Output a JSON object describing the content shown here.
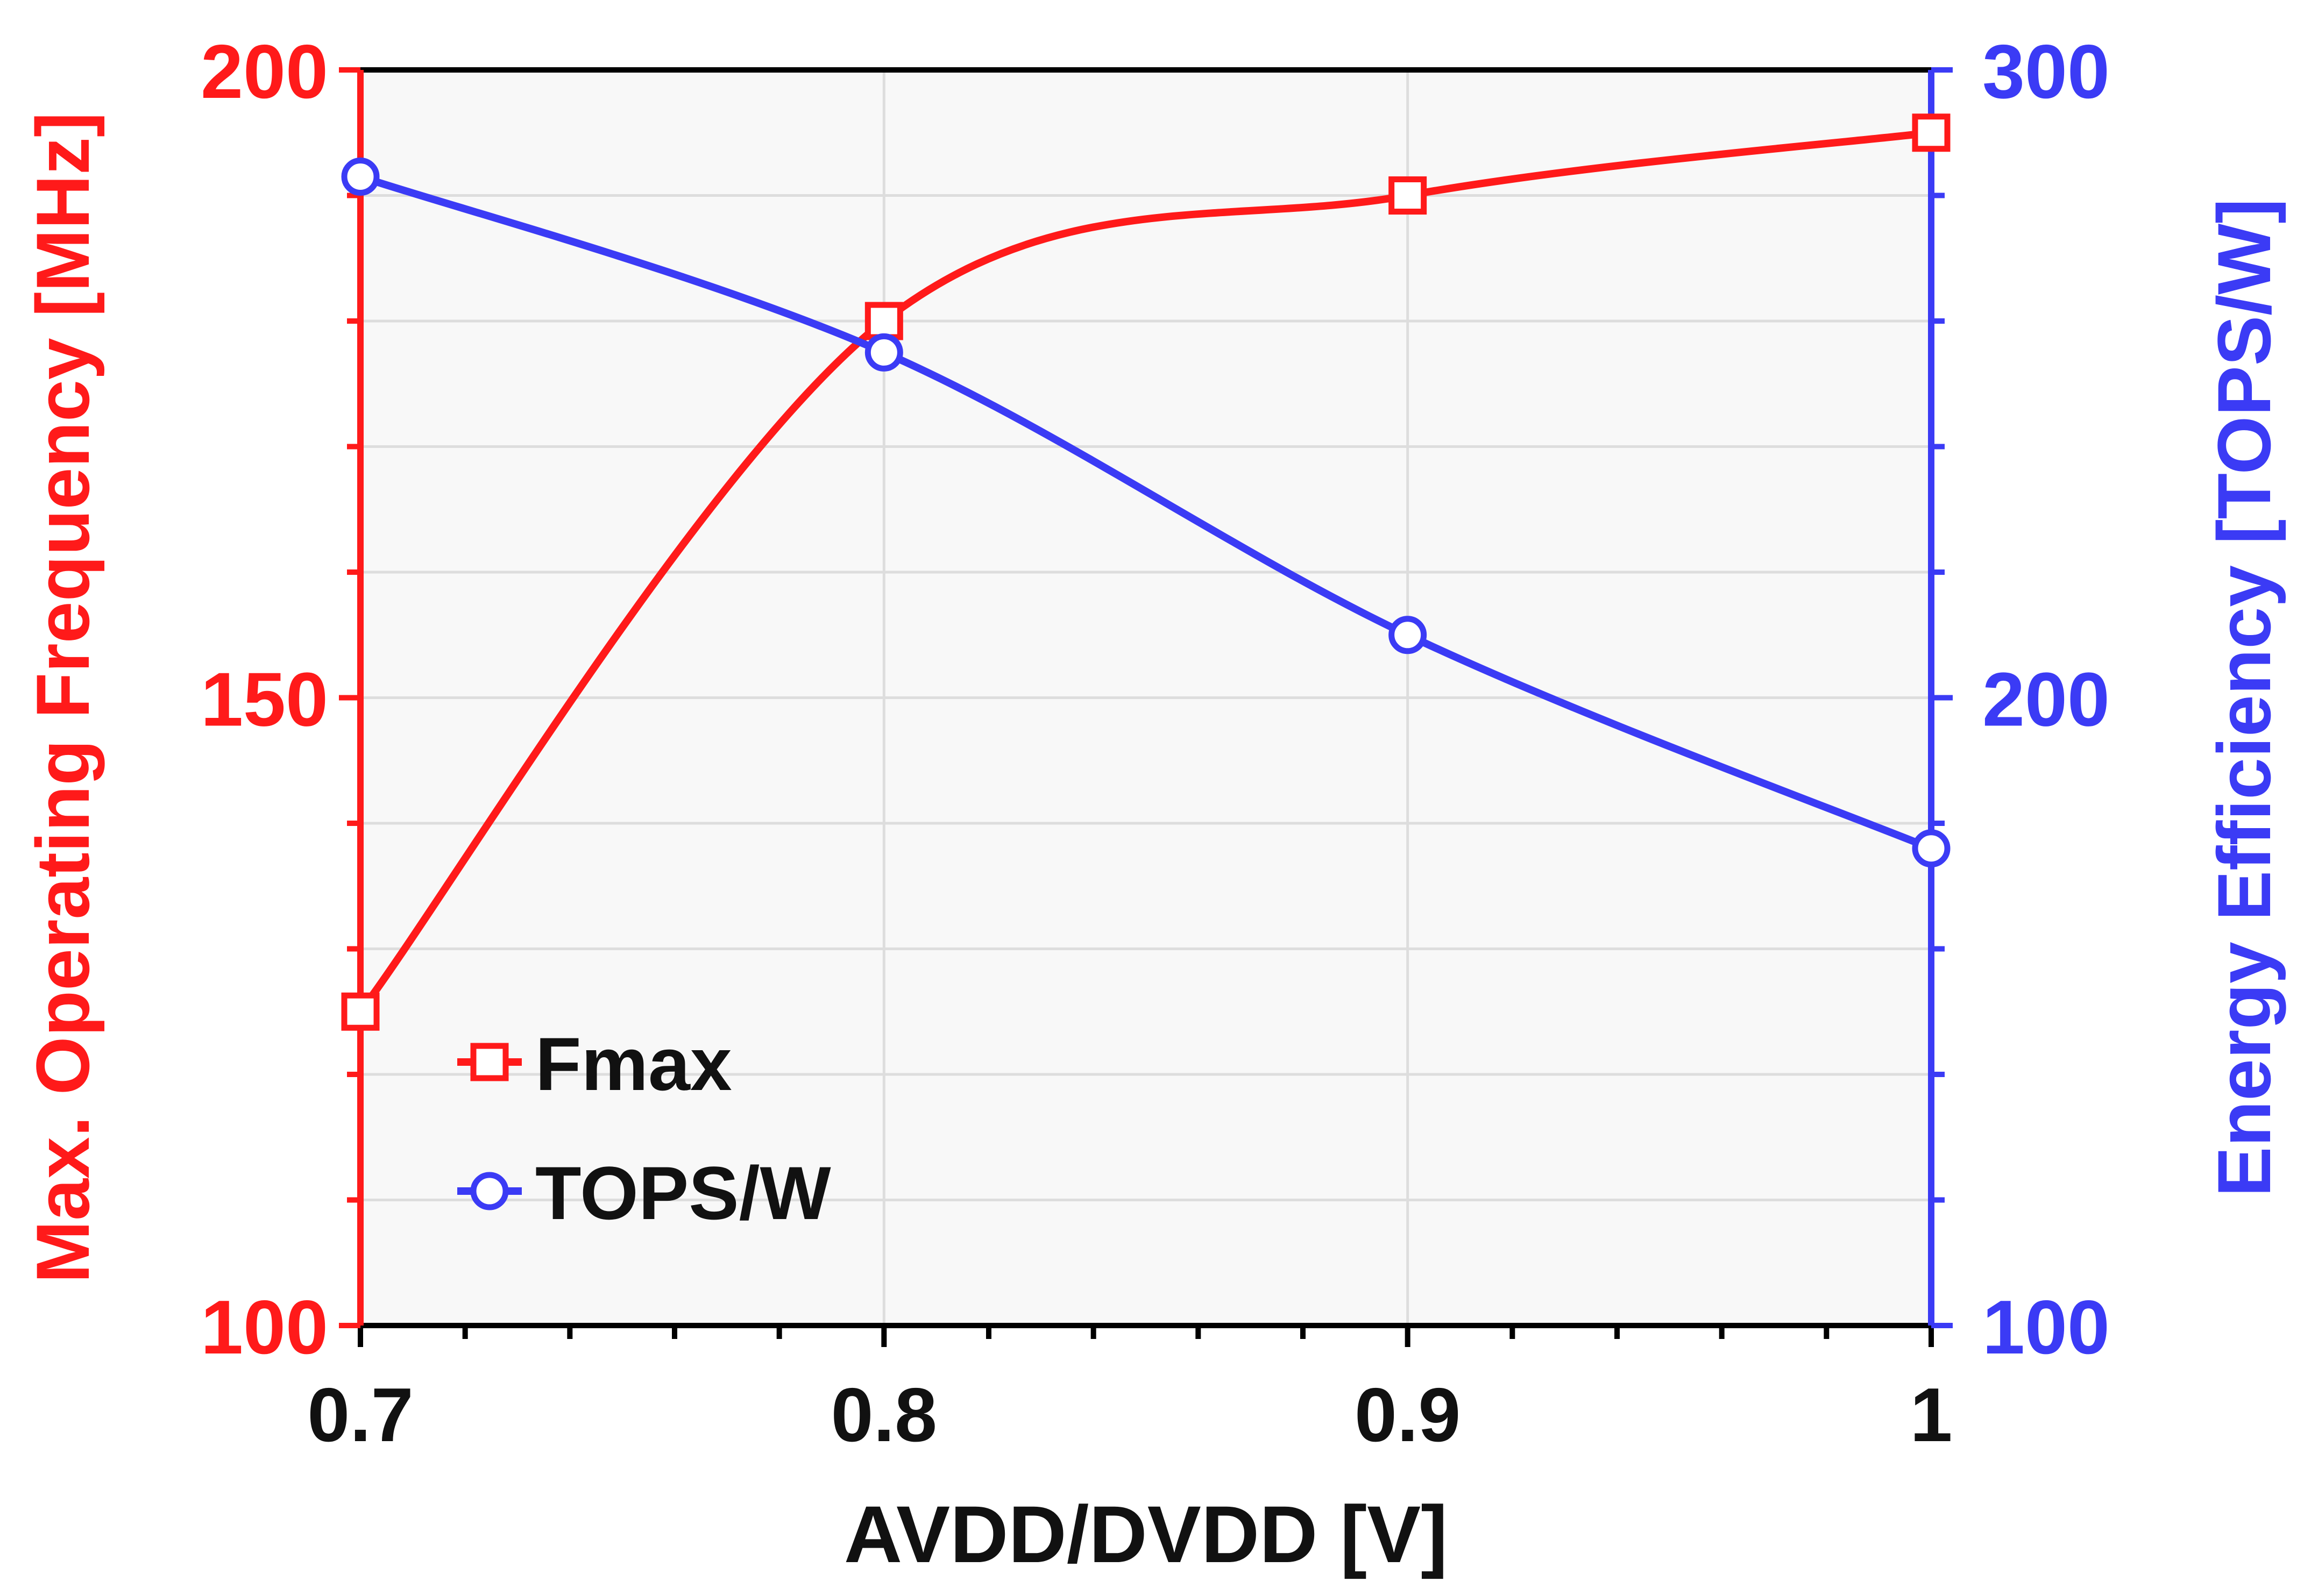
{
  "chart_data": {
    "type": "line",
    "title": "",
    "xlabel": "AVDD/DVDD [V]",
    "ylabel_left": "Max. Operating Frequency [MHz]",
    "ylabel_right": "Energy Efficiency [TOPS/W]",
    "xlim": [
      0.7,
      1.0
    ],
    "ylim_left": [
      100,
      200
    ],
    "ylim_right": [
      100,
      300
    ],
    "x_ticks": [
      "0.7",
      "0.8",
      "0.9",
      "1"
    ],
    "y_left_ticks": [
      "100",
      "150",
      "200"
    ],
    "y_right_ticks": [
      "100",
      "200",
      "300"
    ],
    "grid": true,
    "legend_position": "bottom-left",
    "series": [
      {
        "name": "Fmax",
        "axis": "left",
        "marker": "square",
        "color": "#ff1a1a",
        "x": [
          0.7,
          0.8,
          0.9,
          1.0
        ],
        "values": [
          125,
          180,
          190,
          195
        ]
      },
      {
        "name": "TOPS/W",
        "axis": "right",
        "marker": "circle",
        "color": "#3b3bf5",
        "x": [
          0.7,
          0.8,
          0.9,
          1.0
        ],
        "values": [
          283,
          255,
          210,
          176
        ]
      }
    ]
  },
  "colors": {
    "left_axis": "#ff1a1a",
    "right_axis": "#3b3bf5",
    "plot_background": "#f8f8f8",
    "grid": "#dddddd",
    "frame": "#000000"
  }
}
